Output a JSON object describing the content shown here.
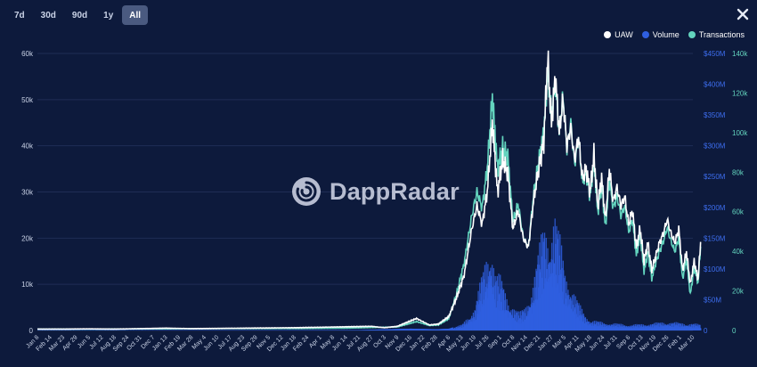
{
  "range_selector": {
    "buttons": [
      {
        "label": "7d",
        "active": false
      },
      {
        "label": "30d",
        "active": false
      },
      {
        "label": "90d",
        "active": false
      },
      {
        "label": "1y",
        "active": false
      },
      {
        "label": "All",
        "active": true
      }
    ]
  },
  "watermark": {
    "text": "DappRadar"
  },
  "colors": {
    "uaw": "#ffffff",
    "volume": "#2f5fe0",
    "transactions": "#63d4be",
    "background": "#0d1a3c"
  },
  "chart_data": {
    "type": "line",
    "legend_position": "top-right",
    "grid": true,
    "legend": [
      {
        "name": "UAW",
        "color": "#ffffff"
      },
      {
        "name": "Volume",
        "color": "#2f5fe0"
      },
      {
        "name": "Transactions",
        "color": "#63d4be"
      }
    ],
    "x_tick_labels": [
      "Jan 8",
      "Feb 14",
      "Mar 23",
      "Apr 29",
      "Jun 5",
      "Jul 12",
      "Aug 18",
      "Sep 24",
      "Oct 31",
      "Dec 7",
      "Jan 13",
      "Feb 19",
      "Mar 28",
      "May 4",
      "Jun 10",
      "Jul 17",
      "Aug 23",
      "Sep 29",
      "Nov 5",
      "Dec 12",
      "Jan 18",
      "Feb 24",
      "Apr 1",
      "May 8",
      "Jun 14",
      "Jul 21",
      "Aug 27",
      "Oct 3",
      "Nov 9",
      "Dec 16",
      "Jan 22",
      "Feb 28",
      "Apr 6",
      "May 13",
      "Jun 19",
      "Jul 26",
      "Sep 1",
      "Oct 8",
      "Nov 14",
      "Dec 21",
      "Jan 27",
      "Mar 5",
      "Apr 11",
      "May 18",
      "Jun 24",
      "Jul 31",
      "Sep 6",
      "Oct 13",
      "Nov 19",
      "Dec 26",
      "Feb 1",
      "Mar 10"
    ],
    "y_left": {
      "series": "UAW",
      "ticks": [
        "0",
        "10k",
        "20k",
        "30k",
        "40k",
        "50k",
        "60k"
      ],
      "range": [
        0,
        60000
      ]
    },
    "y_vol": {
      "series": "Volume",
      "ticks": [
        "0",
        "$50M",
        "$100M",
        "$150M",
        "$200M",
        "$250M",
        "$300M",
        "$350M",
        "$400M",
        "$450M"
      ],
      "range": [
        0,
        450
      ]
    },
    "y_right": {
      "series": "Transactions",
      "ticks": [
        "0",
        "20k",
        "40k",
        "60k",
        "80k",
        "100k",
        "120k",
        "140k"
      ],
      "range": [
        0,
        140000
      ]
    },
    "series": [
      {
        "name": "UAW",
        "axis": "left",
        "points": [
          [
            0,
            300
          ],
          [
            2,
            300
          ],
          [
            4,
            350
          ],
          [
            6,
            300
          ],
          [
            8,
            400
          ],
          [
            10,
            500
          ],
          [
            12,
            400
          ],
          [
            14,
            450
          ],
          [
            16,
            500
          ],
          [
            18,
            550
          ],
          [
            20,
            600
          ],
          [
            22,
            700
          ],
          [
            24,
            800
          ],
          [
            26,
            900
          ],
          [
            27,
            600
          ],
          [
            28,
            900
          ],
          [
            29.5,
            2600
          ],
          [
            30.5,
            1200
          ],
          [
            31.2,
            1400
          ],
          [
            32,
            3000
          ],
          [
            32.6,
            7000
          ],
          [
            33.2,
            12000
          ],
          [
            33.8,
            22000
          ],
          [
            34.2,
            27000
          ],
          [
            34.6,
            23000
          ],
          [
            35,
            30000
          ],
          [
            35.4,
            45000
          ],
          [
            35.8,
            30000
          ],
          [
            36.2,
            37000
          ],
          [
            36.6,
            34000
          ],
          [
            37,
            22000
          ],
          [
            37.4,
            26000
          ],
          [
            37.8,
            20000
          ],
          [
            38.2,
            18000
          ],
          [
            38.6,
            28000
          ],
          [
            39,
            35000
          ],
          [
            39.4,
            41000
          ],
          [
            39.7,
            59000
          ],
          [
            40,
            45000
          ],
          [
            40.3,
            55000
          ],
          [
            40.6,
            43000
          ],
          [
            40.9,
            50000
          ],
          [
            41.2,
            40000
          ],
          [
            41.5,
            44000
          ],
          [
            41.8,
            37000
          ],
          [
            42.1,
            42000
          ],
          [
            42.4,
            33000
          ],
          [
            42.7,
            35000
          ],
          [
            43,
            30000
          ],
          [
            43.3,
            38000
          ],
          [
            43.6,
            27000
          ],
          [
            43.9,
            33000
          ],
          [
            44.2,
            24000
          ],
          [
            44.5,
            35000
          ],
          [
            44.8,
            28000
          ],
          [
            45.1,
            31000
          ],
          [
            45.4,
            27000
          ],
          [
            45.7,
            29000
          ],
          [
            46,
            23000
          ],
          [
            46.3,
            26000
          ],
          [
            46.6,
            18000
          ],
          [
            46.9,
            22000
          ],
          [
            47.2,
            15000
          ],
          [
            47.5,
            19000
          ],
          [
            47.8,
            13000
          ],
          [
            48.1,
            16000
          ],
          [
            48.4,
            19000
          ],
          [
            48.7,
            21000
          ],
          [
            49,
            24000
          ],
          [
            49.3,
            21000
          ],
          [
            49.6,
            19000
          ],
          [
            49.9,
            22000
          ],
          [
            50.2,
            13000
          ],
          [
            50.5,
            17000
          ],
          [
            50.8,
            10000
          ],
          [
            51.1,
            15000
          ],
          [
            51.4,
            11000
          ],
          [
            51.6,
            19000
          ]
        ]
      },
      {
        "name": "Transactions",
        "axis": "right",
        "points": [
          [
            0,
            700
          ],
          [
            4,
            700
          ],
          [
            8,
            800
          ],
          [
            12,
            900
          ],
          [
            16,
            1000
          ],
          [
            20,
            1000
          ],
          [
            24,
            1200
          ],
          [
            26,
            1500
          ],
          [
            28,
            1800
          ],
          [
            29.5,
            4500
          ],
          [
            30.5,
            2500
          ],
          [
            31.2,
            2800
          ],
          [
            32,
            6000
          ],
          [
            32.6,
            18000
          ],
          [
            33.2,
            34000
          ],
          [
            33.8,
            58000
          ],
          [
            34.2,
            70000
          ],
          [
            34.6,
            62000
          ],
          [
            35,
            82000
          ],
          [
            35.4,
            118000
          ],
          [
            35.8,
            82000
          ],
          [
            36.2,
            92000
          ],
          [
            36.6,
            88000
          ],
          [
            37,
            55000
          ],
          [
            37.4,
            64000
          ],
          [
            37.8,
            47000
          ],
          [
            38.2,
            42000
          ],
          [
            38.6,
            68000
          ],
          [
            39,
            85000
          ],
          [
            39.4,
            100000
          ],
          [
            39.7,
            130000
          ],
          [
            40,
            108000
          ],
          [
            40.3,
            126000
          ],
          [
            40.6,
            100000
          ],
          [
            40.9,
            118000
          ],
          [
            41.2,
            92000
          ],
          [
            41.5,
            105000
          ],
          [
            41.8,
            84000
          ],
          [
            42.1,
            98000
          ],
          [
            42.4,
            75000
          ],
          [
            42.7,
            80000
          ],
          [
            43,
            68000
          ],
          [
            43.3,
            86000
          ],
          [
            43.6,
            60000
          ],
          [
            43.9,
            74000
          ],
          [
            44.2,
            52000
          ],
          [
            44.5,
            76000
          ],
          [
            44.8,
            62000
          ],
          [
            45.1,
            68000
          ],
          [
            45.4,
            58000
          ],
          [
            45.7,
            63000
          ],
          [
            46,
            50000
          ],
          [
            46.3,
            56000
          ],
          [
            46.6,
            38000
          ],
          [
            46.9,
            48000
          ],
          [
            47.2,
            30000
          ],
          [
            47.5,
            40000
          ],
          [
            47.8,
            26000
          ],
          [
            48.1,
            34000
          ],
          [
            48.4,
            40000
          ],
          [
            48.7,
            45000
          ],
          [
            49,
            52000
          ],
          [
            49.3,
            45000
          ],
          [
            49.6,
            40000
          ],
          [
            49.9,
            47000
          ],
          [
            50.2,
            26000
          ],
          [
            50.5,
            36000
          ],
          [
            50.8,
            18000
          ],
          [
            51.1,
            32000
          ],
          [
            51.4,
            24000
          ],
          [
            51.6,
            42000
          ]
        ]
      },
      {
        "name": "Volume",
        "axis": "vol",
        "type": "bar",
        "points": [
          [
            0,
            0.5
          ],
          [
            25,
            0.8
          ],
          [
            29,
            3
          ],
          [
            31,
            2
          ],
          [
            32,
            3
          ],
          [
            33,
            10
          ],
          [
            34,
            40
          ],
          [
            34.8,
            120
          ],
          [
            35.2,
            160
          ],
          [
            35.6,
            100
          ],
          [
            36,
            90
          ],
          [
            36.5,
            60
          ],
          [
            37,
            40
          ],
          [
            37.5,
            30
          ],
          [
            38,
            45
          ],
          [
            38.5,
            80
          ],
          [
            39,
            140
          ],
          [
            39.4,
            190
          ],
          [
            39.8,
            170
          ],
          [
            40.2,
            200
          ],
          [
            40.6,
            160
          ],
          [
            41,
            110
          ],
          [
            41.5,
            75
          ],
          [
            42,
            50
          ],
          [
            42.5,
            30
          ],
          [
            43,
            18
          ],
          [
            44,
            14
          ],
          [
            45,
            12
          ],
          [
            46,
            10
          ],
          [
            47,
            11
          ],
          [
            48,
            13
          ],
          [
            49,
            15
          ],
          [
            50,
            13
          ],
          [
            51,
            12
          ],
          [
            51.6,
            10
          ]
        ]
      }
    ]
  }
}
